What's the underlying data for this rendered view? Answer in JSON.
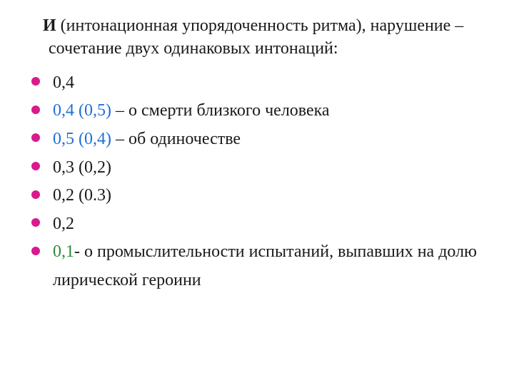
{
  "intro": {
    "bold": "И",
    "rest": " (интонационная упорядоченность ритма), нарушение – сочетание двух одинаковых интонаций:"
  },
  "bullets": {
    "b0": {
      "text": "0,4",
      "color": "black"
    },
    "b1": {
      "num": "0,4 (0,5)",
      "rest": " – о смерти близкого человека"
    },
    "b2": {
      "num": "0,5 (0,4)",
      "rest": " – об одиночестве"
    },
    "b3": {
      "text": "0,3 (0,2)"
    },
    "b4": {
      "text": "0,2 (0.3)"
    },
    "b5": {
      "text": "0,2"
    },
    "b6": {
      "num": "0,1",
      "rest": "- о промыслительности испытаний, выпавших на долю лирической героини"
    }
  },
  "colors": {
    "bullet": "#d91a8c",
    "blue": "#1e6fd9",
    "green": "#2a8a3a",
    "text": "#1a1a1a",
    "background": "#ffffff"
  },
  "typography": {
    "font_family": "Times New Roman",
    "font_size_pt": 18
  }
}
